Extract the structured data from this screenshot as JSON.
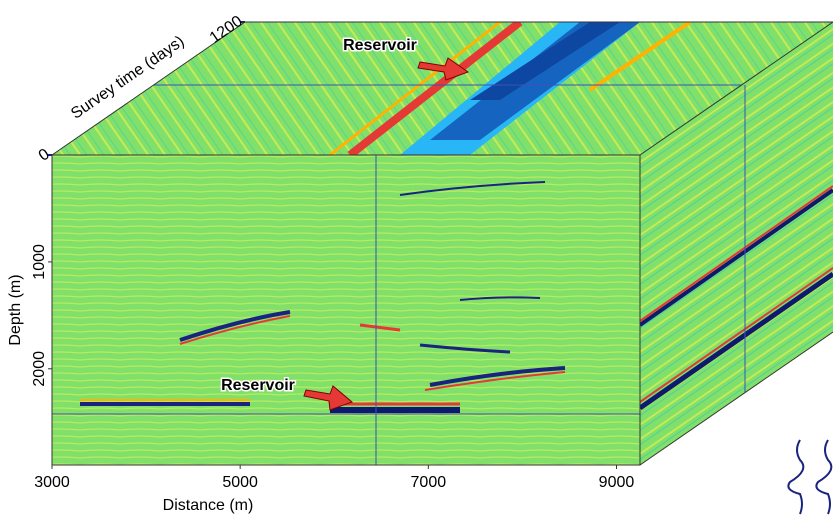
{
  "chart_data": {
    "type": "cube",
    "xlabel": "Distance (m)",
    "ylabel": "Depth (m)",
    "zlabel": "Survey time (days)",
    "xlim": [
      3000,
      9250
    ],
    "xticks": [
      3000,
      5000,
      7000,
      9000
    ],
    "ylim": [
      0,
      2900
    ],
    "yticks": [
      1000,
      2000
    ],
    "zlim": [
      0,
      1200
    ],
    "zticks": [
      0,
      1200
    ],
    "annotations": [
      "Reservoir",
      "Reservoir"
    ]
  }
}
